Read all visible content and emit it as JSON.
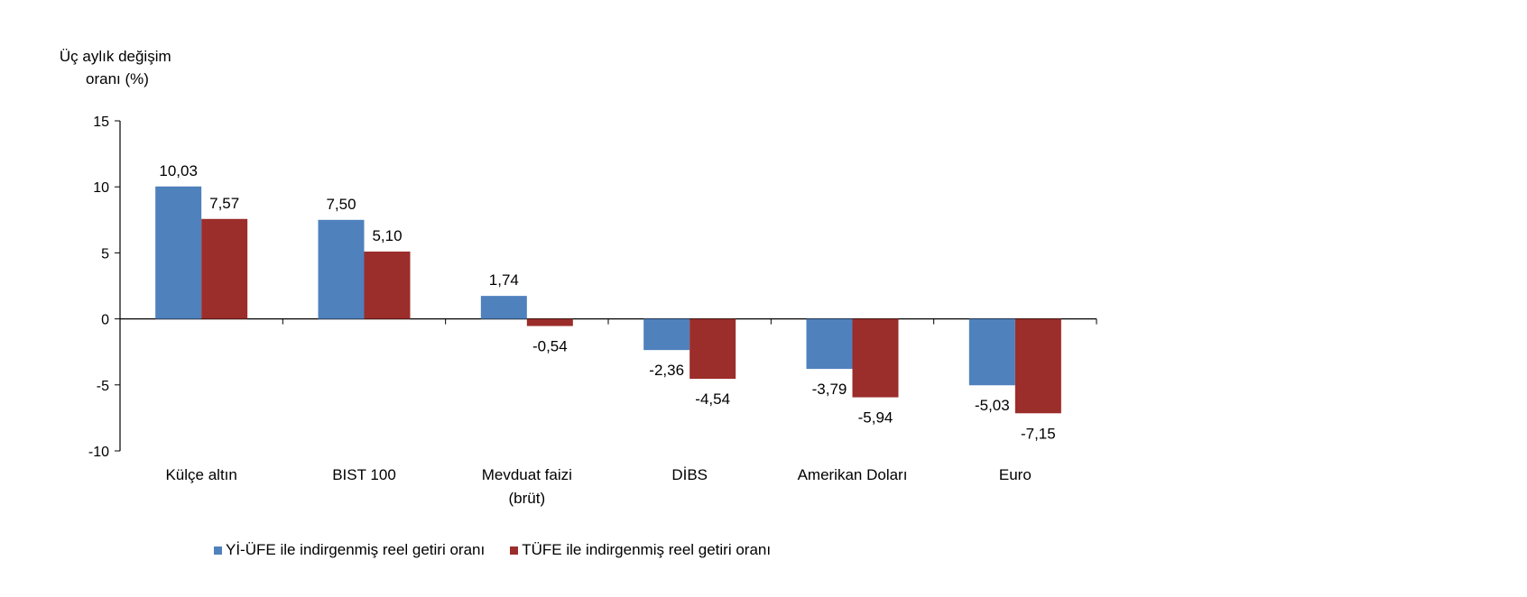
{
  "chart_data": {
    "type": "bar",
    "ylabel_lines": [
      "Üç aylık değişim",
      "oranı (%)"
    ],
    "ylim": [
      -10,
      15
    ],
    "yticks": [
      15,
      10,
      5,
      0,
      -5,
      -10
    ],
    "grid": false,
    "legend_position": "bottom",
    "categories": [
      [
        "Külçe altın"
      ],
      [
        "BIST 100"
      ],
      [
        "Mevduat faizi",
        "(brüt)"
      ],
      [
        "DİBS"
      ],
      [
        "Amerikan Doları"
      ],
      [
        "Euro"
      ]
    ],
    "series": [
      {
        "name": "Yİ-ÜFE ile indirgenmiş reel getiri oranı",
        "color": "#4F81BD",
        "values": [
          10.03,
          7.5,
          1.74,
          -2.36,
          -3.79,
          -5.03
        ],
        "labels": [
          "10,03",
          "7,50",
          "1,74",
          "-2,36",
          "-3,79",
          "-5,03"
        ]
      },
      {
        "name": "TÜFE ile indirgenmiş reel getiri oranı",
        "color": "#9B2D2A",
        "values": [
          7.57,
          5.1,
          -0.54,
          -4.54,
          -5.94,
          -7.15
        ],
        "labels": [
          "7,57",
          "5,10",
          "-0,54",
          "-4,54",
          "-5,94",
          "-7,15"
        ]
      }
    ]
  }
}
